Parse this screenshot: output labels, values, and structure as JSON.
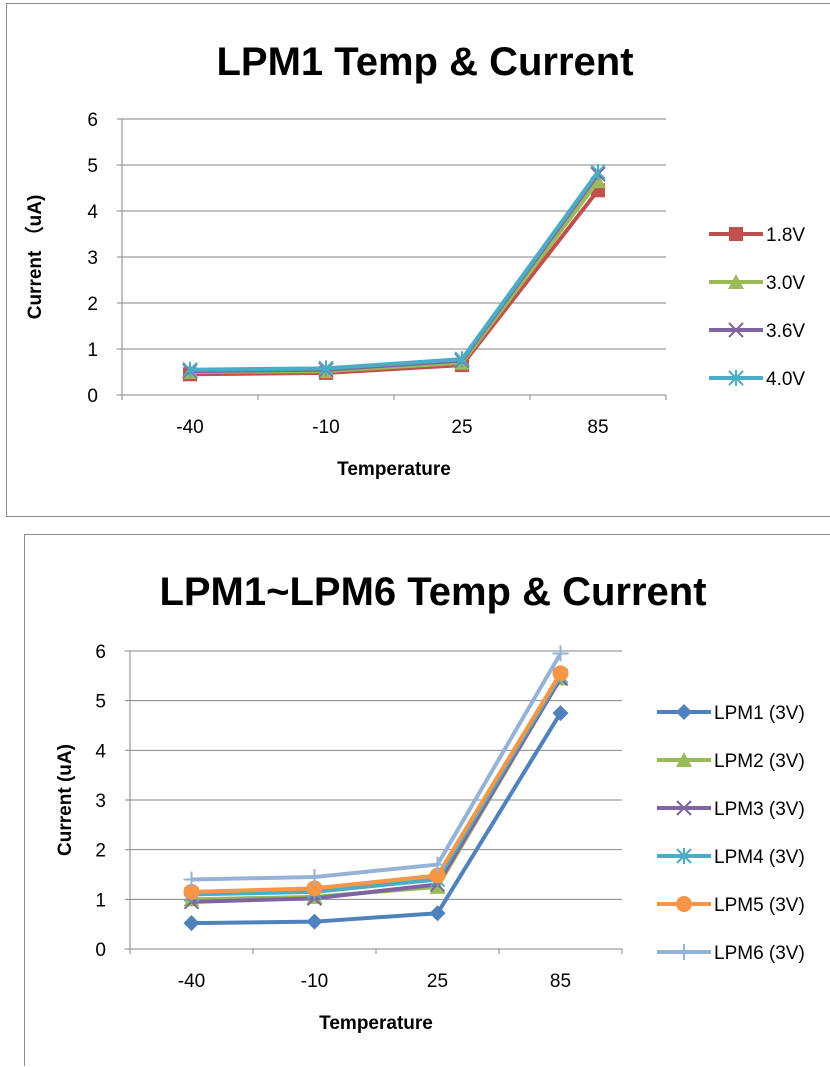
{
  "chart_data": [
    {
      "type": "line",
      "title": "LPM1 Temp & Current",
      "xlabel": "Temperature",
      "ylabel": "Current （uA)",
      "categories": [
        "-40",
        "-10",
        "25",
        "85"
      ],
      "ylim": [
        0,
        6
      ],
      "yticks": [
        0,
        1,
        2,
        3,
        4,
        5,
        6
      ],
      "grid": true,
      "legend": "right",
      "series": [
        {
          "name": "1.8V",
          "values": [
            0.45,
            0.48,
            0.65,
            4.45
          ],
          "color": "#C0504D",
          "marker": "square"
        },
        {
          "name": "3.0V",
          "values": [
            0.5,
            0.52,
            0.7,
            4.65
          ],
          "color": "#9BBB59",
          "marker": "triangle"
        },
        {
          "name": "3.6V",
          "values": [
            0.52,
            0.55,
            0.75,
            4.8
          ],
          "color": "#8064A2",
          "marker": "x"
        },
        {
          "name": "4.0V",
          "values": [
            0.55,
            0.58,
            0.78,
            4.85
          ],
          "color": "#4BACC6",
          "marker": "star"
        }
      ]
    },
    {
      "type": "line",
      "title": "LPM1~LPM6 Temp & Current",
      "xlabel": "Temperature",
      "ylabel": "Current (uA)",
      "categories": [
        "-40",
        "-10",
        "25",
        "85"
      ],
      "ylim": [
        0,
        6
      ],
      "yticks": [
        0,
        1,
        2,
        3,
        4,
        5,
        6
      ],
      "grid": true,
      "legend": "right",
      "series": [
        {
          "name": "LPM1 (3V)",
          "values": [
            0.52,
            0.55,
            0.72,
            4.75
          ],
          "color": "#4F81BD",
          "marker": "diamond"
        },
        {
          "name": "LPM2 (3V)",
          "values": [
            1.0,
            1.05,
            1.25,
            5.45
          ],
          "color": "#9BBB59",
          "marker": "triangle"
        },
        {
          "name": "LPM3 (3V)",
          "values": [
            0.95,
            1.02,
            1.3,
            5.45
          ],
          "color": "#8064A2",
          "marker": "x"
        },
        {
          "name": "LPM4 (3V)",
          "values": [
            1.1,
            1.15,
            1.4,
            5.5
          ],
          "color": "#4BACC6",
          "marker": "star"
        },
        {
          "name": "LPM5 (3V)",
          "values": [
            1.15,
            1.22,
            1.48,
            5.55
          ],
          "color": "#F79646",
          "marker": "circle"
        },
        {
          "name": "LPM6 (3V)",
          "values": [
            1.4,
            1.45,
            1.7,
            5.95
          ],
          "color": "#95B3D7",
          "marker": "plus"
        }
      ]
    }
  ]
}
